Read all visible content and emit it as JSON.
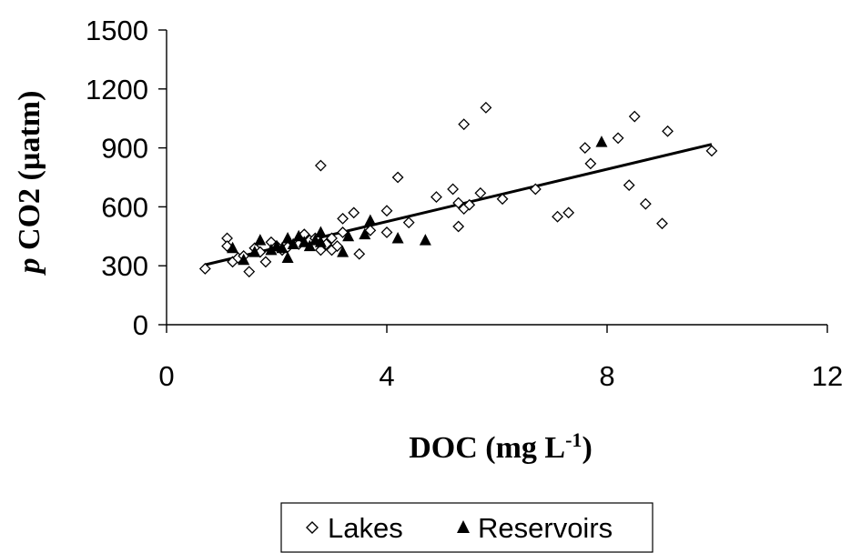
{
  "chart_data": {
    "type": "scatter",
    "title": "",
    "xlabel": "DOC (mg L",
    "xlabel_superscript": "-1",
    "xlabel_close": ")",
    "ylabel_italic": "p",
    "ylabel": " CO2 (µatm)",
    "xlim": [
      0,
      12
    ],
    "ylim": [
      0,
      1500
    ],
    "xticks": [
      "0",
      "4",
      "8",
      "12"
    ],
    "yticks": [
      "0",
      "300",
      "600",
      "900",
      "1200",
      "1500"
    ],
    "grid": false,
    "legend_position": "bottom",
    "series": [
      {
        "name": "Lakes",
        "marker": "open-diamond",
        "points": [
          [
            0.7,
            285
          ],
          [
            1.1,
            440
          ],
          [
            1.1,
            400
          ],
          [
            1.2,
            320
          ],
          [
            1.3,
            340
          ],
          [
            1.4,
            350
          ],
          [
            1.5,
            270
          ],
          [
            1.6,
            390
          ],
          [
            1.7,
            370
          ],
          [
            1.8,
            320
          ],
          [
            1.9,
            420
          ],
          [
            2.0,
            400
          ],
          [
            2.1,
            380
          ],
          [
            2.2,
            395
          ],
          [
            2.4,
            410
          ],
          [
            2.5,
            460
          ],
          [
            2.6,
            430
          ],
          [
            2.7,
            440
          ],
          [
            2.8,
            380
          ],
          [
            2.8,
            810
          ],
          [
            2.9,
            410
          ],
          [
            3.0,
            380
          ],
          [
            3.0,
            440
          ],
          [
            3.1,
            400
          ],
          [
            3.2,
            470
          ],
          [
            3.2,
            540
          ],
          [
            3.4,
            570
          ],
          [
            3.5,
            360
          ],
          [
            3.7,
            480
          ],
          [
            4.0,
            580
          ],
          [
            4.0,
            470
          ],
          [
            4.2,
            750
          ],
          [
            4.4,
            520
          ],
          [
            4.9,
            650
          ],
          [
            5.2,
            690
          ],
          [
            5.3,
            500
          ],
          [
            5.3,
            620
          ],
          [
            5.4,
            1020
          ],
          [
            5.4,
            590
          ],
          [
            5.5,
            610
          ],
          [
            5.7,
            670
          ],
          [
            5.8,
            1105
          ],
          [
            6.1,
            640
          ],
          [
            6.7,
            690
          ],
          [
            7.1,
            550
          ],
          [
            7.3,
            570
          ],
          [
            7.6,
            900
          ],
          [
            7.7,
            820
          ],
          [
            8.2,
            950
          ],
          [
            8.4,
            710
          ],
          [
            8.5,
            1060
          ],
          [
            8.7,
            615
          ],
          [
            9.0,
            515
          ],
          [
            9.1,
            985
          ],
          [
            9.9,
            885
          ]
        ]
      },
      {
        "name": "Reservoirs",
        "marker": "filled-triangle",
        "points": [
          [
            1.2,
            390
          ],
          [
            1.4,
            330
          ],
          [
            1.6,
            370
          ],
          [
            1.7,
            430
          ],
          [
            1.9,
            380
          ],
          [
            2.0,
            400
          ],
          [
            2.1,
            390
          ],
          [
            2.2,
            440
          ],
          [
            2.2,
            340
          ],
          [
            2.3,
            410
          ],
          [
            2.4,
            450
          ],
          [
            2.5,
            420
          ],
          [
            2.6,
            400
          ],
          [
            2.7,
            430
          ],
          [
            2.8,
            470
          ],
          [
            2.8,
            420
          ],
          [
            3.2,
            370
          ],
          [
            3.3,
            450
          ],
          [
            3.6,
            460
          ],
          [
            3.7,
            530
          ],
          [
            4.2,
            440
          ],
          [
            4.7,
            430
          ],
          [
            7.9,
            930
          ]
        ]
      }
    ],
    "trendline": {
      "x": [
        0.7,
        9.9
      ],
      "y": [
        305,
        918
      ]
    }
  }
}
